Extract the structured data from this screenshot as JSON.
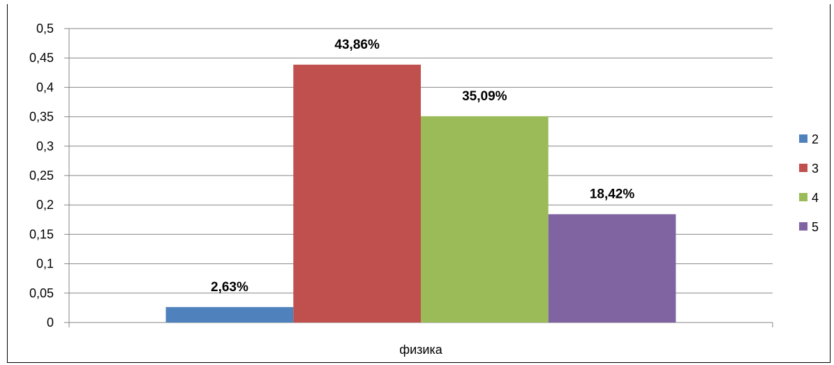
{
  "chart_data": {
    "type": "bar",
    "categories": [
      "физика"
    ],
    "series": [
      {
        "name": "2",
        "values": [
          0.0263
        ],
        "label": "2,63%",
        "color": "#4f81bd"
      },
      {
        "name": "3",
        "values": [
          0.4386
        ],
        "label": "43,86%",
        "color": "#c0504d"
      },
      {
        "name": "4",
        "values": [
          0.3509
        ],
        "label": "35,09%",
        "color": "#9bbb59"
      },
      {
        "name": "5",
        "values": [
          0.1842
        ],
        "label": "18,42%",
        "color": "#8064a2"
      }
    ],
    "ylim": [
      0,
      0.5
    ],
    "yticks": [
      0,
      0.05,
      0.1,
      0.15,
      0.2,
      0.25,
      0.3,
      0.35,
      0.4,
      0.45,
      0.5
    ],
    "ytick_labels": [
      "0",
      "0,05",
      "0,1",
      "0,15",
      "0,2",
      "0,25",
      "0,3",
      "0,35",
      "0,4",
      "0,45",
      "0,5"
    ],
    "grid": true,
    "legend_position": "right",
    "title": "",
    "xlabel": "",
    "ylabel": ""
  }
}
